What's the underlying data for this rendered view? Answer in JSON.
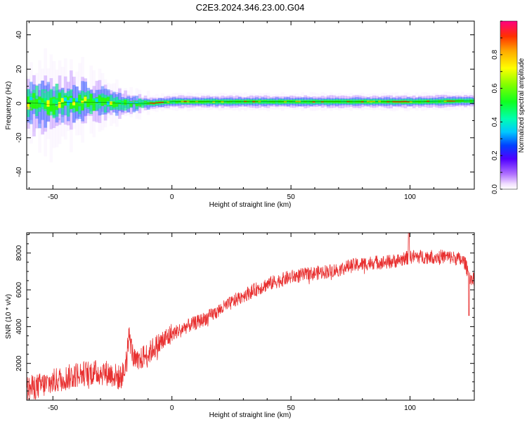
{
  "title": "C2E3.2024.346.23.00.G04",
  "chart_data": [
    {
      "type": "heatmap",
      "xlabel": "Height of straight line (km)",
      "ylabel": "Frequency (Hz)",
      "xlim": [
        -61,
        127
      ],
      "ylim": [
        -50,
        48
      ],
      "xticks": [
        -50,
        0,
        50,
        100
      ],
      "yticks": [
        -40,
        -20,
        0,
        20,
        40
      ],
      "ridge": [
        {
          "x": -60,
          "f": 0.5,
          "spread": 6
        },
        {
          "x": -55,
          "f": 0.0,
          "spread": 6.5
        },
        {
          "x": -50,
          "f": -1.0,
          "spread": 7
        },
        {
          "x": -45,
          "f": 0.5,
          "spread": 6
        },
        {
          "x": -40,
          "f": 1.0,
          "spread": 5.5
        },
        {
          "x": -35,
          "f": 0.5,
          "spread": 5
        },
        {
          "x": -30,
          "f": 0.8,
          "spread": 4
        },
        {
          "x": -25,
          "f": 0.3,
          "spread": 3
        },
        {
          "x": -20,
          "f": 0.0,
          "spread": 2.5
        },
        {
          "x": -15,
          "f": 0.0,
          "spread": 2
        },
        {
          "x": -10,
          "f": 0.0,
          "spread": 1.5
        },
        {
          "x": 0,
          "f": 1.0,
          "spread": 1.5
        },
        {
          "x": 50,
          "f": 1.0,
          "spread": 1.5
        },
        {
          "x": 100,
          "f": 1.0,
          "spread": 1.5
        },
        {
          "x": 127,
          "f": 1.5,
          "spread": 1.5
        }
      ],
      "colorbar": {
        "label": "Normalized spectral amplitude",
        "min": 0.0,
        "max": 1.0,
        "ticks": [
          0.0,
          0.2,
          0.4,
          0.6,
          0.8
        ]
      }
    },
    {
      "type": "line",
      "xlabel": "Height of straight line (km)",
      "ylabel": "SNR (10 * v/v)",
      "xlim": [
        -61,
        127
      ],
      "ylim": [
        0,
        9100
      ],
      "xticks": [
        -50,
        0,
        50,
        100
      ],
      "yticks": [
        2000,
        4000,
        6000,
        8000
      ],
      "series": [
        {
          "color": "#e83030",
          "x": [
            -61,
            -58,
            -55,
            -52,
            -50,
            -48,
            -45,
            -42,
            -40,
            -37,
            -34,
            -31,
            -28,
            -25,
            -22,
            -20,
            -18,
            -16,
            -14,
            -12,
            -10,
            -8,
            -6,
            -4,
            -2,
            0,
            3,
            6,
            10,
            15,
            20,
            25,
            30,
            35,
            40,
            45,
            50,
            55,
            60,
            65,
            70,
            75,
            80,
            85,
            90,
            95,
            98,
            100,
            103,
            107,
            110,
            115,
            120,
            123,
            125,
            127
          ],
          "y": [
            600,
            700,
            800,
            900,
            1000,
            1100,
            1200,
            1300,
            1400,
            1450,
            1500,
            1500,
            1500,
            1400,
            1200,
            1500,
            3500,
            2200,
            2000,
            2400,
            2500,
            2800,
            3000,
            3200,
            3400,
            3600,
            3800,
            4000,
            4200,
            4500,
            4900,
            5300,
            5700,
            6000,
            6300,
            6500,
            6700,
            6800,
            6900,
            7000,
            7100,
            7300,
            7400,
            7500,
            7500,
            7600,
            7700,
            7800,
            7800,
            7800,
            7800,
            7800,
            7700,
            7500,
            6700,
            6600
          ],
          "noise": 700
        }
      ]
    }
  ]
}
